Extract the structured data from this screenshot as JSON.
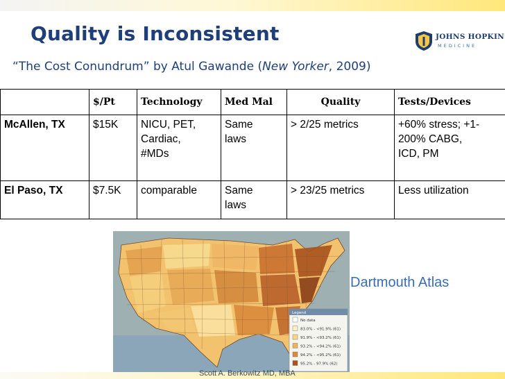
{
  "slide": {
    "title": "Quality is Inconsistent",
    "subtitle": {
      "open_quote": "“",
      "article": "The Cost Conundrum",
      "close_quote": "”",
      "by": " by Atul Gawande (",
      "publication": "New Yorker",
      "year": ", 2009)"
    },
    "logo": {
      "name": "JOHNS HOPKINS",
      "sub": "MEDICINE"
    },
    "map_caption": "Dartmouth Atlas",
    "footer": "Scott A. Berkowitz MD, MBA"
  },
  "table": {
    "headers": [
      "",
      "$/Pt",
      "Technology",
      "Med Mal",
      "Quality",
      "Tests/Devices"
    ],
    "rows": [
      {
        "city": "McAllen, TX",
        "cost": "$15K",
        "technology": [
          "NICU, PET,",
          "Cardiac,",
          "#MDs"
        ],
        "med_mal": [
          "Same",
          "laws"
        ],
        "quality": "> 2/25 metrics",
        "tests": [
          "+60% stress; +1-",
          "200% CABG,",
          "ICD, PM"
        ]
      },
      {
        "city": "El Paso, TX",
        "cost": "$7.5K",
        "technology": [
          "comparable"
        ],
        "med_mal": [
          "Same",
          "laws"
        ],
        "quality": "> 23/25 metrics",
        "tests": [
          "Less utilization"
        ]
      }
    ]
  },
  "map": {
    "legend_title": "Legend",
    "legend_items": [
      {
        "label": "No data",
        "color": "#ffffff"
      },
      {
        "label": "83.0% - <91.9% (61)",
        "color": "#fdf1c4"
      },
      {
        "label": "91.9% - <93.2% (61)",
        "color": "#f8d77e"
      },
      {
        "label": "93.2% - <94.2% (61)",
        "color": "#f0b25a"
      },
      {
        "label": "94.2% - <95.2% (61)",
        "color": "#d98a3a"
      },
      {
        "label": "95.2% - 97.9% (62)",
        "color": "#a9521e"
      }
    ]
  },
  "colors": {
    "title": "#1f3f7a",
    "caption": "#3a6db0"
  }
}
